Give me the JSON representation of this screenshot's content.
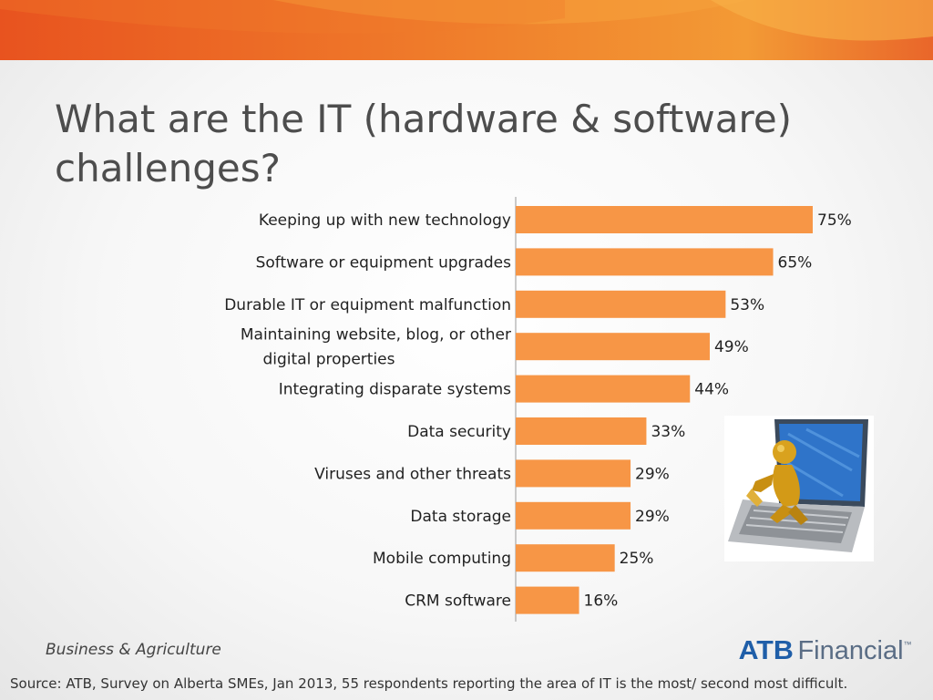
{
  "slide": {
    "title": "What are the IT (hardware & software) challenges?",
    "footer_left": "Business & Agriculture",
    "logo": {
      "primary": "ATB",
      "secondary": "Financial",
      "mark": "™"
    },
    "source": "Source:  ATB, Survey on Alberta SMEs, Jan 2013, 55 respondents reporting the area of IT  is the most/ second most difficult.",
    "colors": {
      "band_dark": "#e8531f",
      "band_light": "#f6a23c",
      "bar": "#f79646",
      "logo_blue": "#1f5ea8",
      "logo_gray": "#5a6d85"
    },
    "illustration_icon": "gold-figure-on-laptop-icon"
  },
  "chart_data": {
    "type": "bar",
    "orientation": "horizontal",
    "categories": [
      "Keeping up with new technology",
      "Software or equipment upgrades",
      "Durable IT or equipment malfunction",
      "Maintaining website, blog, or other digital properties",
      "Integrating disparate systems",
      "Data security",
      "Viruses and other threats",
      "Data storage",
      "Mobile computing",
      "CRM software"
    ],
    "values": [
      75,
      65,
      53,
      49,
      44,
      33,
      29,
      29,
      25,
      16
    ],
    "data_labels": [
      "75%",
      "65%",
      "53%",
      "49%",
      "44%",
      "33%",
      "29%",
      "29%",
      "25%",
      "16%"
    ],
    "value_unit": "%",
    "xlim": [
      0,
      100
    ],
    "grid": false,
    "legend": "none",
    "title": "",
    "xlabel": "",
    "ylabel": ""
  }
}
